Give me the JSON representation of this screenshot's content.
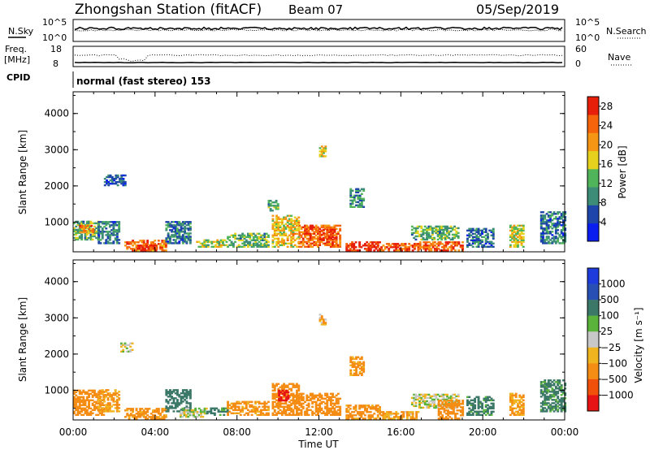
{
  "header": {
    "station": "Zhongshan Station (fitACF)",
    "beam": "Beam 07",
    "date": "05/Sep/2019"
  },
  "panels": {
    "sky": {
      "left_label": "N.Sky",
      "right_label": "N.Search",
      "left_ticks": [
        "10^5",
        "10^0"
      ],
      "right_ticks": [
        "10^5",
        "10^0"
      ]
    },
    "freq": {
      "left_label_1": "Freq.",
      "left_label_2": "[MHz]",
      "right_label": "Nave",
      "left_ticks": [
        "18",
        "8"
      ],
      "right_ticks": [
        "60",
        "0"
      ]
    },
    "cpid": {
      "label": "CPID",
      "text": "normal (fast stereo) 153"
    }
  },
  "colors": {
    "power_scale": [
      "#0a1ef0",
      "#1e46aa",
      "#3c8c78",
      "#50b45a",
      "#e6d21e",
      "#f59614",
      "#f5640a",
      "#e61e0a"
    ],
    "velocity_scale": [
      "#1e3cdc",
      "#2850b4",
      "#3c7868",
      "#5ab43c",
      "#c8c8c8",
      "#f0b41e",
      "#f58c14",
      "#f0500a",
      "#e61414"
    ]
  },
  "chart_data": [
    {
      "type": "heatmap",
      "name": "power",
      "ylabel": "Slant Range [km]",
      "yticks": [
        "1000",
        "2000",
        "3000",
        "4000"
      ],
      "ylim": [
        180,
        4600
      ],
      "xlim": [
        0,
        24
      ],
      "colorbar_label": "Power [dB]",
      "colorbar_ticks": [
        "4",
        "8",
        "12",
        "16",
        "20",
        "24",
        "28"
      ],
      "colorbar_range": [
        0,
        30
      ],
      "patches": [
        {
          "t0": 0.0,
          "t1": 1.2,
          "r0": 500,
          "r1": 1000,
          "value": 12
        },
        {
          "t0": 0.3,
          "t1": 1.0,
          "r0": 700,
          "r1": 900,
          "value": 22
        },
        {
          "t0": 1.2,
          "t1": 2.2,
          "r0": 400,
          "r1": 1000,
          "value": 8
        },
        {
          "t0": 2.5,
          "t1": 4.5,
          "r0": 200,
          "r1": 500,
          "value": 23
        },
        {
          "t0": 3.0,
          "t1": 4.0,
          "r0": 200,
          "r1": 350,
          "value": 28
        },
        {
          "t0": 4.5,
          "t1": 5.7,
          "r0": 400,
          "r1": 1000,
          "value": 8
        },
        {
          "t0": 6.0,
          "t1": 7.5,
          "r0": 300,
          "r1": 500,
          "value": 15
        },
        {
          "t0": 7.5,
          "t1": 9.5,
          "r0": 300,
          "r1": 700,
          "value": 12
        },
        {
          "t0": 9.7,
          "t1": 11.0,
          "r0": 300,
          "r1": 1200,
          "value": 18
        },
        {
          "t0": 11.0,
          "t1": 13.0,
          "r0": 300,
          "r1": 900,
          "value": 24
        },
        {
          "t0": 12.0,
          "t1": 12.8,
          "r0": 500,
          "r1": 800,
          "value": 28
        },
        {
          "t0": 13.3,
          "t1": 15.0,
          "r0": 200,
          "r1": 450,
          "value": 28
        },
        {
          "t0": 15.0,
          "t1": 16.8,
          "r0": 200,
          "r1": 400,
          "value": 26
        },
        {
          "t0": 16.5,
          "t1": 18.8,
          "r0": 500,
          "r1": 900,
          "value": 12
        },
        {
          "t0": 16.8,
          "t1": 19.0,
          "r0": 200,
          "r1": 450,
          "value": 25
        },
        {
          "t0": 19.2,
          "t1": 20.5,
          "r0": 300,
          "r1": 800,
          "value": 8
        },
        {
          "t0": 21.3,
          "t1": 22.0,
          "r0": 300,
          "r1": 900,
          "value": 16
        },
        {
          "t0": 22.8,
          "t1": 24.0,
          "r0": 400,
          "r1": 1300,
          "value": 8
        },
        {
          "t0": 1.5,
          "t1": 2.5,
          "r0": 2000,
          "r1": 2300,
          "value": 6
        },
        {
          "t0": 13.5,
          "t1": 14.2,
          "r0": 1400,
          "r1": 1900,
          "value": 10
        },
        {
          "t0": 9.5,
          "t1": 10.0,
          "r0": 1300,
          "r1": 1600,
          "value": 12
        },
        {
          "t0": 12.0,
          "t1": 12.3,
          "r0": 2800,
          "r1": 3100,
          "value": 18
        }
      ]
    },
    {
      "type": "heatmap",
      "name": "velocity",
      "ylabel": "Slant Range [km]",
      "yticks": [
        "1000",
        "2000",
        "3000",
        "4000"
      ],
      "ylim": [
        180,
        4600
      ],
      "xlabel": "Time UT",
      "xticks": [
        "00:00",
        "04:00",
        "08:00",
        "12:00",
        "16:00",
        "20:00",
        "00:00"
      ],
      "xlim": [
        0,
        24
      ],
      "colorbar_label": "Velocity [m s⁻¹]",
      "colorbar_ticks": [
        "1000",
        "500",
        "100",
        "25",
        "−25",
        "−100",
        "−500",
        "−1000"
      ],
      "patches": [
        {
          "t0": 0.0,
          "t1": 1.5,
          "r0": 300,
          "r1": 1000,
          "value": -200
        },
        {
          "t0": 1.2,
          "t1": 2.2,
          "r0": 400,
          "r1": 1000,
          "value": -120
        },
        {
          "t0": 2.5,
          "t1": 4.5,
          "r0": 200,
          "r1": 500,
          "value": -150
        },
        {
          "t0": 4.5,
          "t1": 5.7,
          "r0": 400,
          "r1": 1000,
          "value": 200
        },
        {
          "t0": 5.2,
          "t1": 6.5,
          "r0": 250,
          "r1": 500,
          "value": 0
        },
        {
          "t0": 6.5,
          "t1": 7.5,
          "r0": 300,
          "r1": 500,
          "value": 150
        },
        {
          "t0": 7.5,
          "t1": 9.5,
          "r0": 300,
          "r1": 700,
          "value": -150
        },
        {
          "t0": 9.7,
          "t1": 11.0,
          "r0": 300,
          "r1": 1200,
          "value": -200
        },
        {
          "t0": 10.0,
          "t1": 10.5,
          "r0": 700,
          "r1": 1000,
          "value": -1200
        },
        {
          "t0": 11.0,
          "t1": 13.0,
          "r0": 300,
          "r1": 900,
          "value": -300
        },
        {
          "t0": 13.3,
          "t1": 15.0,
          "r0": 200,
          "r1": 600,
          "value": -150
        },
        {
          "t0": 15.0,
          "t1": 16.8,
          "r0": 200,
          "r1": 400,
          "value": -100
        },
        {
          "t0": 16.5,
          "t1": 18.8,
          "r0": 500,
          "r1": 900,
          "value": 0
        },
        {
          "t0": 17.8,
          "t1": 19.0,
          "r0": 200,
          "r1": 700,
          "value": -300
        },
        {
          "t0": 19.2,
          "t1": 20.5,
          "r0": 300,
          "r1": 800,
          "value": 150
        },
        {
          "t0": 21.3,
          "t1": 22.0,
          "r0": 300,
          "r1": 900,
          "value": -120
        },
        {
          "t0": 22.8,
          "t1": 24.0,
          "r0": 400,
          "r1": 1300,
          "value": 150
        },
        {
          "t0": 2.3,
          "t1": 2.9,
          "r0": 2050,
          "r1": 2300,
          "value": 0
        },
        {
          "t0": 13.5,
          "t1": 14.2,
          "r0": 1400,
          "r1": 1900,
          "value": -150
        },
        {
          "t0": 12.0,
          "t1": 12.3,
          "r0": 2800,
          "r1": 3100,
          "value": -60
        }
      ]
    }
  ]
}
